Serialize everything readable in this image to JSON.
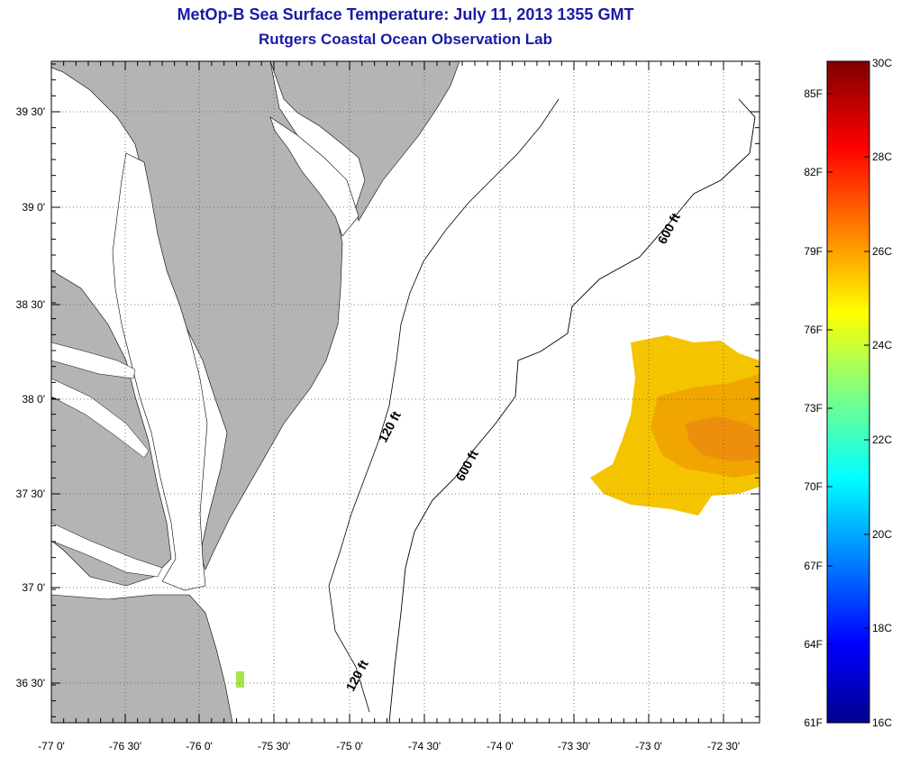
{
  "title": "MetOp-B Sea Surface Temperature:  July 11, 2013 1355 GMT",
  "subtitle": "Rutgers Coastal Ocean Observation Lab",
  "lon_ticks": [
    "-77 0'",
    "-76 30'",
    "-76 0'",
    "-75 30'",
    "-75 0'",
    "-74 30'",
    "-74 0'",
    "-73 30'",
    "-73 0'",
    "-72 30'"
  ],
  "lat_ticks": [
    "39 30'",
    "39 0'",
    "38 30'",
    "38 0'",
    "37 30'",
    "37 0'",
    "36 30'"
  ],
  "isobaths": {
    "shelf_a": "120 ft",
    "shelf_b": "120 ft",
    "slope_a": "600 ft",
    "slope_b": "600 ft"
  },
  "colorbar": {
    "f_labels": [
      "85F",
      "82F",
      "79F",
      "76F",
      "73F",
      "70F",
      "67F",
      "64F",
      "61F"
    ],
    "c_labels": [
      "30C",
      "28C",
      "26C",
      "24C",
      "22C",
      "20C",
      "18C",
      "16C"
    ],
    "colors": {
      "land": "#b4b4b4",
      "warm_water": "#f5c400",
      "hot_water": "#f0a000",
      "cool_patch": "#a6e64a"
    }
  }
}
